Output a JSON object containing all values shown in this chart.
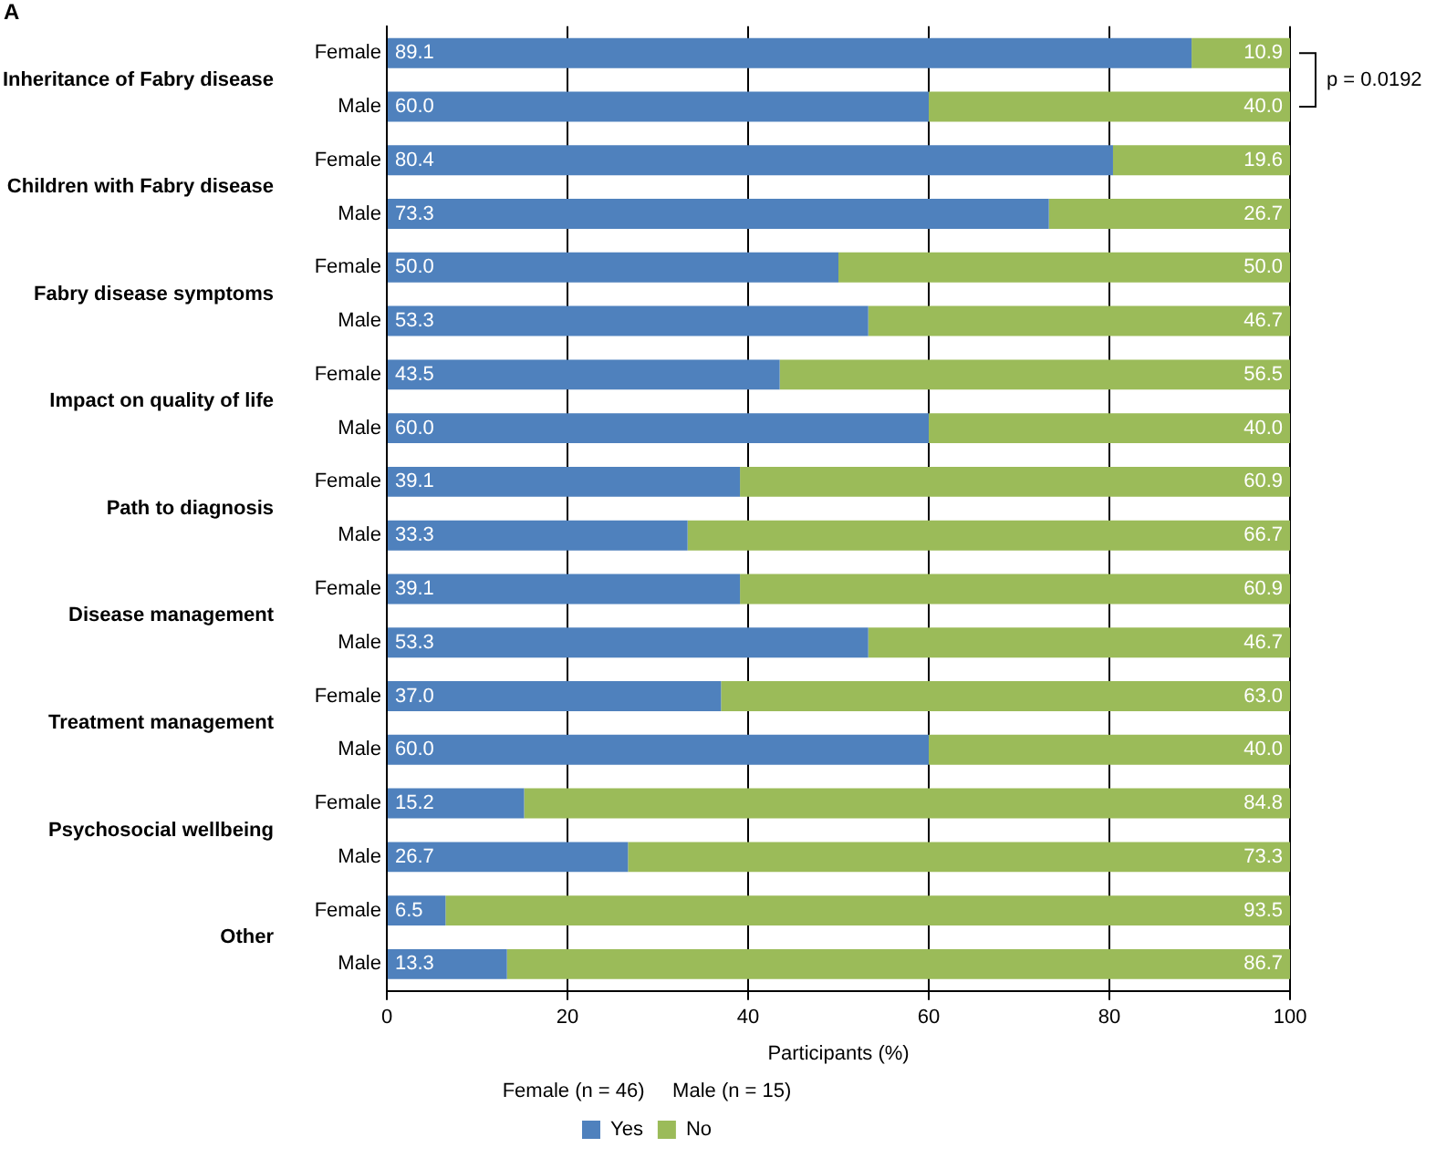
{
  "chart_data": {
    "type": "bar",
    "orientation": "horizontal",
    "stacked": true,
    "title": "A",
    "xlabel": "Participants (%)",
    "categories": [
      "Female",
      "Male",
      "Female",
      "Male",
      "Female",
      "Male",
      "Female",
      "Male",
      "Female",
      "Male",
      "Female",
      "Male",
      "Female",
      "Male",
      "Female",
      "Male",
      "Female",
      "Male"
    ],
    "series": [
      {
        "name": "Yes",
        "color": "#4f81bd",
        "values": [
          89.1,
          60.0,
          80.4,
          73.3,
          50.0,
          53.3,
          43.5,
          60.0,
          39.1,
          33.3,
          39.1,
          53.3,
          37.0,
          60.0,
          15.2,
          26.7,
          6.5,
          13.3
        ],
        "value_labels": [
          "89.1",
          "60.0",
          "80.4",
          "73.3",
          "50.0",
          "53.3",
          "43.5",
          "60.0",
          "39.1",
          "33.3",
          "39.1",
          "53.3",
          "37.0",
          "60.0",
          "15.2",
          "26.7",
          "6.5",
          "13.3"
        ]
      },
      {
        "name": "No",
        "color": "#9bbb59",
        "values": [
          10.9,
          40.0,
          19.6,
          26.7,
          50.0,
          46.7,
          56.5,
          40.0,
          60.9,
          66.7,
          60.9,
          46.7,
          63.0,
          40.0,
          84.8,
          73.3,
          93.5,
          86.7
        ],
        "value_labels": [
          "10.9",
          "40.0",
          "19.6",
          "26.7",
          "50.0",
          "46.7",
          "56.5",
          "40.0",
          "60.9",
          "66.7",
          "60.9",
          "46.7",
          "63.0",
          "40.0",
          "84.8",
          "73.3",
          "93.5",
          "86.7"
        ]
      }
    ],
    "xlim": [
      0,
      100
    ],
    "xticks": [
      0,
      20,
      40,
      60,
      80,
      100
    ],
    "grid": "x",
    "legend": "bottom",
    "annotations": [
      "Inheritance of Fabry disease",
      "Children with Fabry disease",
      "Fabry disease symptoms",
      "Impact on quality of life",
      "Path to diagnosis",
      "Disease management",
      "Treatment management",
      "Psychosocial wellbeing",
      "Other",
      "Female (n = 46)     Male (n = 15)",
      "p = 0.0192"
    ]
  }
}
